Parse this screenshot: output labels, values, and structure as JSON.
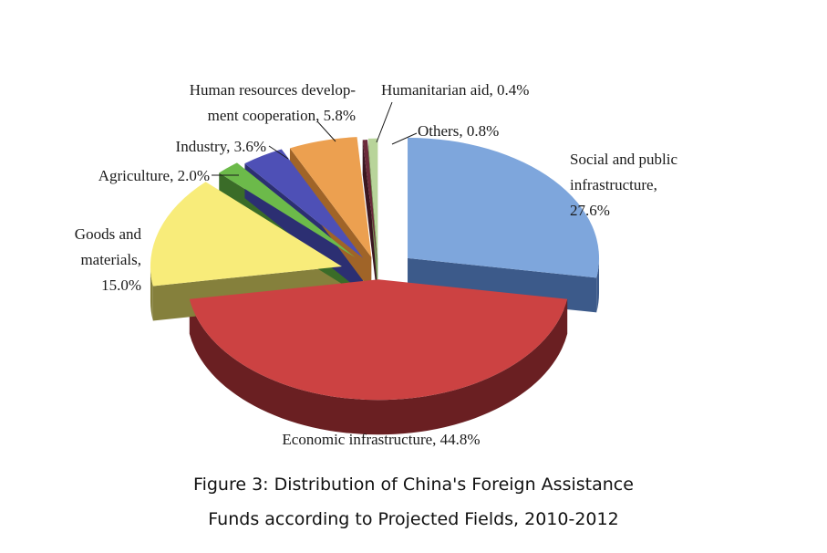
{
  "chart_data": {
    "type": "pie",
    "title_lines": [
      "Figure 3: Distribution of China's Foreign Assistance",
      "Funds according to Projected Fields, 2010-2012"
    ],
    "unit": "%",
    "slices": [
      {
        "name": "Social and public infrastructure",
        "value": 27.6,
        "label_lines": [
          "Social and public",
          "infrastructure,",
          "27.6%"
        ],
        "color": "#7ea6dc",
        "side_color": "#3c5a8a"
      },
      {
        "name": "Economic infrastructure",
        "value": 44.8,
        "label_lines": [
          "Economic infrastructure, 44.8%"
        ],
        "color": "#cc4242",
        "side_color": "#6a1f22"
      },
      {
        "name": "Goods and materials",
        "value": 15.0,
        "label_lines": [
          "Goods and",
          "materials,",
          "15.0%"
        ],
        "color": "#f8ec7a",
        "side_color": "#85803c"
      },
      {
        "name": "Agriculture",
        "value": 2.0,
        "label_lines": [
          "Agriculture, 2.0%"
        ],
        "color": "#6cba4a",
        "side_color": "#3a6c28"
      },
      {
        "name": "Industry",
        "value": 3.6,
        "label_lines": [
          "Industry, 3.6%"
        ],
        "color": "#4e50b6",
        "side_color": "#2c2f72"
      },
      {
        "name": "Human resources development cooperation",
        "value": 5.8,
        "label_lines": [
          "Human resources develop-",
          "ment cooperation, 5.8%"
        ],
        "color": "#eca050",
        "side_color": "#a06428"
      },
      {
        "name": "Humanitarian aid",
        "value": 0.4,
        "label_lines": [
          "Humanitarian aid, 0.4%"
        ],
        "color": "#6a2a3a",
        "side_color": "#3a1620"
      },
      {
        "name": "Others",
        "value": 0.8,
        "label_lines": [
          "Others, 0.8%"
        ],
        "color": "#b8d49a",
        "side_color": "#7a9a5c"
      }
    ]
  }
}
